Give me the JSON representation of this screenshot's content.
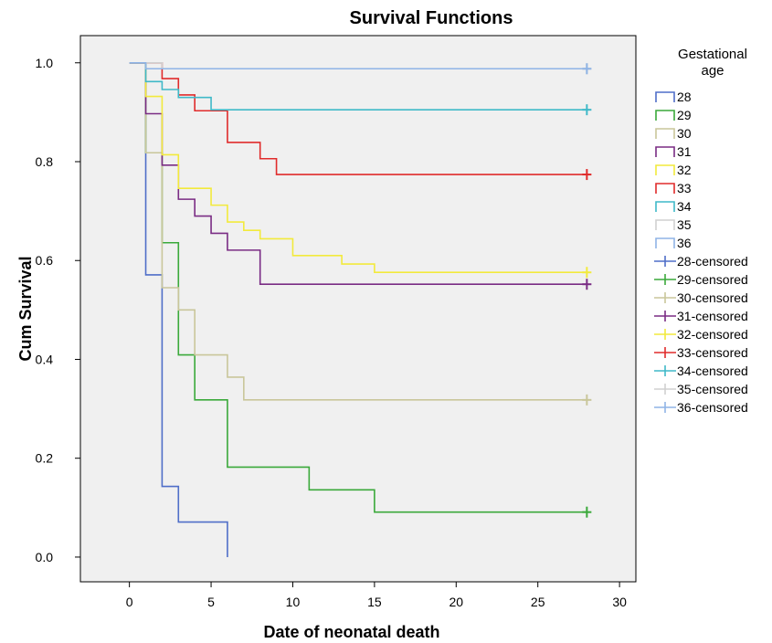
{
  "chart_data": {
    "type": "line",
    "subtype": "kaplan-meier-step",
    "title": "Survival Functions",
    "xlabel": "Date of neonatal death",
    "ylabel": "Cum Survival",
    "xlim": [
      -3,
      31
    ],
    "ylim": [
      -0.05,
      1.055
    ],
    "xticks": [
      0,
      5,
      10,
      15,
      20,
      25,
      30
    ],
    "yticks": [
      0.0,
      0.2,
      0.4,
      0.6,
      0.8,
      1.0
    ],
    "xtick_labels": [
      "0",
      "5",
      "10",
      "15",
      "20",
      "25",
      "30"
    ],
    "ytick_labels": [
      "0.0",
      "0.2",
      "0.4",
      "0.6",
      "0.8",
      "1.0"
    ],
    "grid": false,
    "plot_background": "#f0f0f0",
    "legend": {
      "title_lines": [
        "Gestational",
        "age"
      ],
      "placement": "right",
      "entries": [
        {
          "label": "28",
          "kind": "line",
          "color": "#4f6ec8"
        },
        {
          "label": "29",
          "kind": "line",
          "color": "#3aa93a"
        },
        {
          "label": "30",
          "kind": "line",
          "color": "#c9c69a"
        },
        {
          "label": "31",
          "kind": "line",
          "color": "#7a2c84"
        },
        {
          "label": "32",
          "kind": "line",
          "color": "#f2ea3c"
        },
        {
          "label": "33",
          "kind": "line",
          "color": "#e02b2b"
        },
        {
          "label": "34",
          "kind": "line",
          "color": "#3fb9c8"
        },
        {
          "label": "35",
          "kind": "line",
          "color": "#d0d0d0"
        },
        {
          "label": "36",
          "kind": "line",
          "color": "#8fb4e6"
        },
        {
          "label": "28-censored",
          "kind": "marker",
          "color": "#4f6ec8"
        },
        {
          "label": "29-censored",
          "kind": "marker",
          "color": "#3aa93a"
        },
        {
          "label": "30-censored",
          "kind": "marker",
          "color": "#c9c69a"
        },
        {
          "label": "31-censored",
          "kind": "marker",
          "color": "#7a2c84"
        },
        {
          "label": "32-censored",
          "kind": "marker",
          "color": "#f2ea3c"
        },
        {
          "label": "33-censored",
          "kind": "marker",
          "color": "#e02b2b"
        },
        {
          "label": "34-censored",
          "kind": "marker",
          "color": "#3fb9c8"
        },
        {
          "label": "35-censored",
          "kind": "marker",
          "color": "#d0d0d0"
        },
        {
          "label": "36-censored",
          "kind": "marker",
          "color": "#8fb4e6"
        }
      ]
    },
    "series": [
      {
        "name": "28",
        "color": "#4f6ec8",
        "steps": [
          [
            0,
            1.0
          ],
          [
            1,
            0.571
          ],
          [
            2,
            0.143
          ],
          [
            3,
            0.071
          ],
          [
            6,
            0.0
          ]
        ],
        "end_x": 6,
        "censored": []
      },
      {
        "name": "29",
        "color": "#3aa93a",
        "steps": [
          [
            0,
            1.0
          ],
          [
            1,
            0.818
          ],
          [
            2,
            0.636
          ],
          [
            3,
            0.409
          ],
          [
            4,
            0.318
          ],
          [
            6,
            0.182
          ],
          [
            11,
            0.136
          ],
          [
            15,
            0.091
          ]
        ],
        "end_x": 28,
        "censored": [
          [
            28,
            0.091
          ]
        ]
      },
      {
        "name": "30",
        "color": "#c9c69a",
        "steps": [
          [
            0,
            1.0
          ],
          [
            1,
            0.818
          ],
          [
            2,
            0.545
          ],
          [
            3,
            0.5
          ],
          [
            4,
            0.409
          ],
          [
            6,
            0.364
          ],
          [
            7,
            0.318
          ]
        ],
        "end_x": 28,
        "censored": [
          [
            28,
            0.318
          ]
        ]
      },
      {
        "name": "31",
        "color": "#7a2c84",
        "steps": [
          [
            0,
            1.0
          ],
          [
            1,
            0.897
          ],
          [
            2,
            0.793
          ],
          [
            3,
            0.724
          ],
          [
            4,
            0.69
          ],
          [
            5,
            0.655
          ],
          [
            6,
            0.621
          ],
          [
            8,
            0.552
          ]
        ],
        "end_x": 28,
        "censored": [
          [
            28,
            0.552
          ]
        ]
      },
      {
        "name": "32",
        "color": "#f2ea3c",
        "steps": [
          [
            0,
            1.0
          ],
          [
            1,
            0.932
          ],
          [
            2,
            0.814
          ],
          [
            3,
            0.746
          ],
          [
            5,
            0.712
          ],
          [
            6,
            0.678
          ],
          [
            7,
            0.661
          ],
          [
            8,
            0.644
          ],
          [
            10,
            0.61
          ],
          [
            13,
            0.593
          ],
          [
            15,
            0.576
          ]
        ],
        "end_x": 28,
        "censored": [
          [
            28,
            0.576
          ]
        ]
      },
      {
        "name": "33",
        "color": "#e02b2b",
        "steps": [
          [
            0,
            1.0
          ],
          [
            2,
            0.968
          ],
          [
            3,
            0.935
          ],
          [
            4,
            0.903
          ],
          [
            6,
            0.839
          ],
          [
            8,
            0.806
          ],
          [
            9,
            0.774
          ]
        ],
        "end_x": 28,
        "censored": [
          [
            28,
            0.774
          ]
        ]
      },
      {
        "name": "34",
        "color": "#3fb9c8",
        "steps": [
          [
            0,
            1.0
          ],
          [
            1,
            0.962
          ],
          [
            2,
            0.946
          ],
          [
            3,
            0.93
          ],
          [
            5,
            0.905
          ]
        ],
        "end_x": 28,
        "censored": [
          [
            28,
            0.905
          ]
        ]
      },
      {
        "name": "35",
        "color": "#d0d0d0",
        "steps": [
          [
            0,
            1.0
          ],
          [
            2,
            0.988
          ]
        ],
        "end_x": 28,
        "censored": [
          [
            28,
            0.988
          ]
        ]
      },
      {
        "name": "36",
        "color": "#8fb4e6",
        "steps": [
          [
            0,
            1.0
          ],
          [
            1,
            0.988
          ]
        ],
        "end_x": 28,
        "censored": [
          [
            28,
            0.988
          ]
        ]
      }
    ]
  }
}
